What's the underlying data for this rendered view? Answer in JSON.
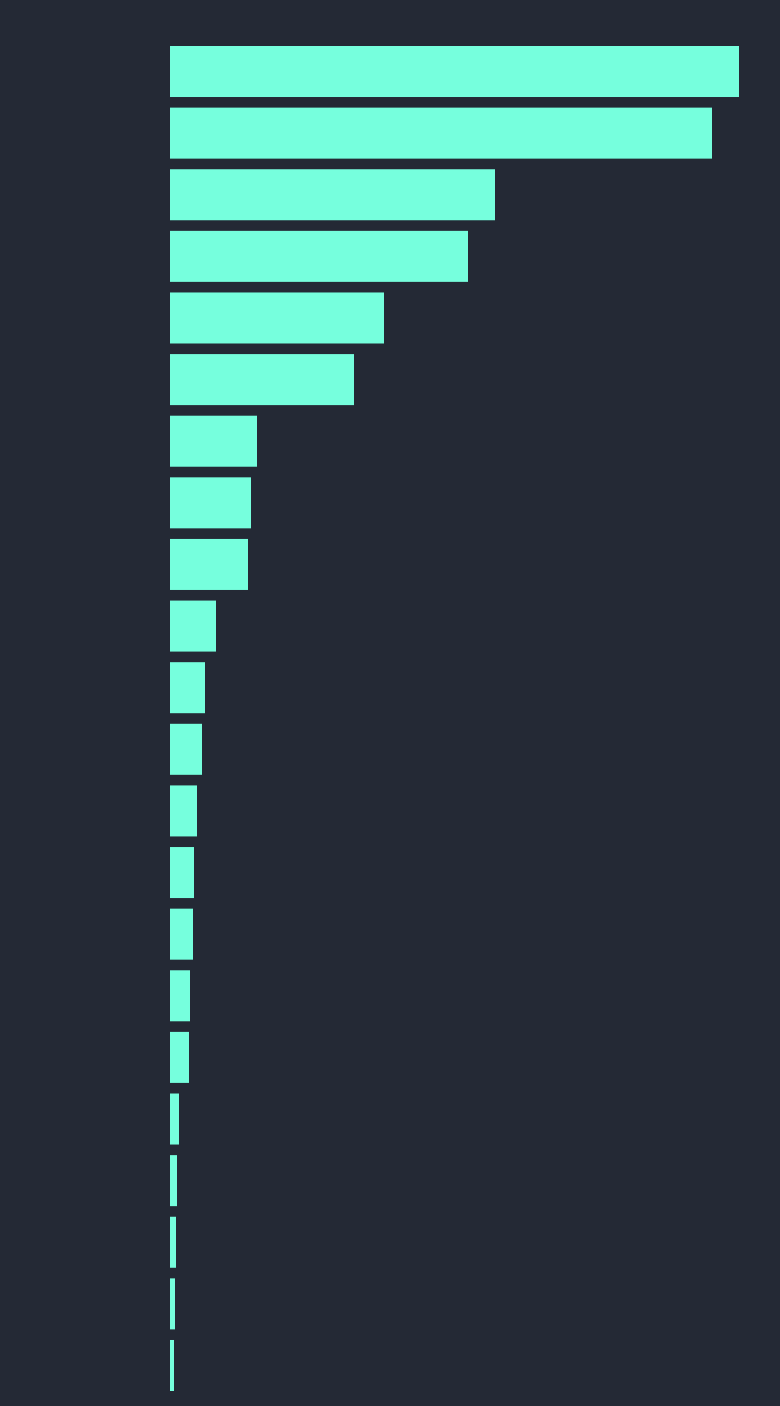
{
  "chart_data": {
    "type": "bar",
    "orientation": "horizontal",
    "categories": [
      null,
      null,
      null,
      null,
      null,
      null,
      null,
      null,
      null,
      null,
      null,
      null,
      null,
      null,
      null,
      null,
      null,
      null,
      null,
      null,
      null,
      null
    ],
    "values": [
      569,
      542,
      325,
      298,
      214,
      184,
      87,
      81,
      78,
      46,
      35,
      32,
      27,
      24,
      23,
      20,
      19,
      9,
      7,
      6,
      5,
      4
    ],
    "color": "#76ffdd",
    "xlim": [
      0,
      570
    ]
  }
}
